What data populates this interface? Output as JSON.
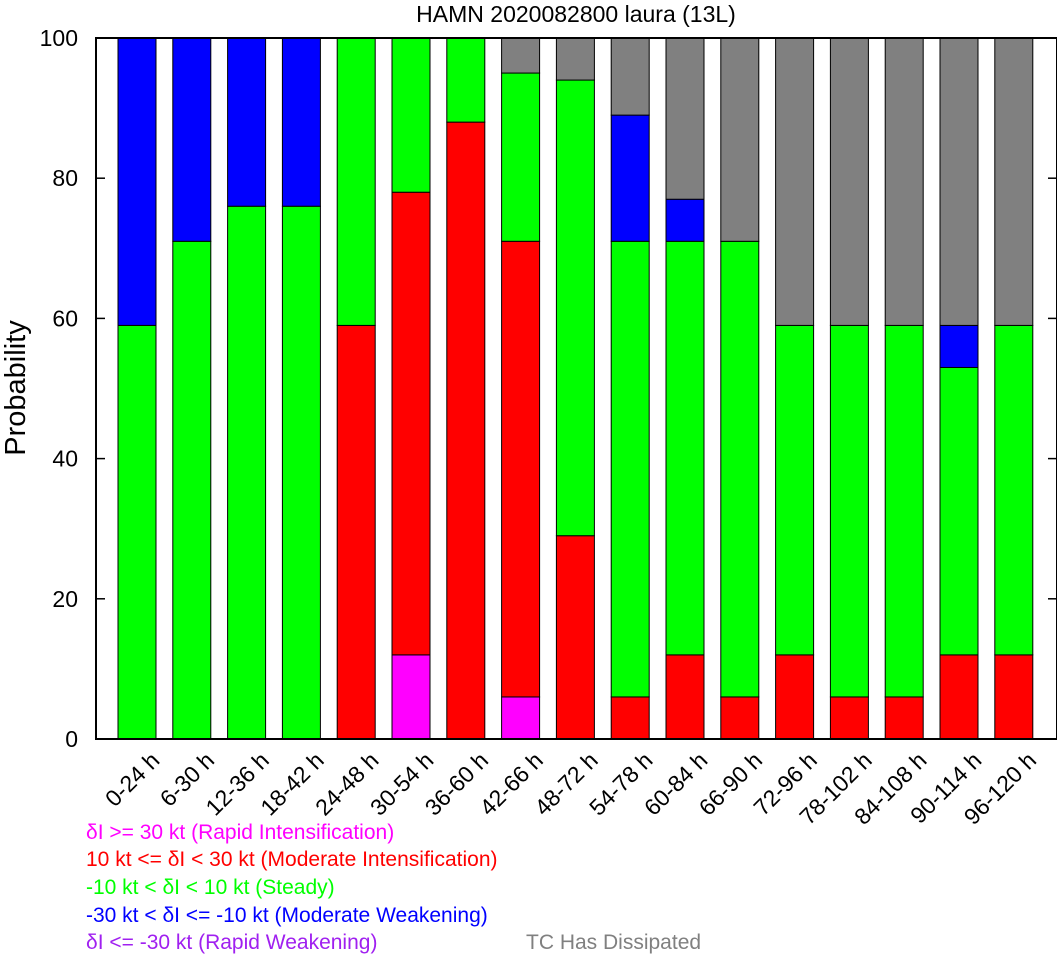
{
  "chart_data": {
    "type": "bar",
    "stacked": true,
    "title": "HAMN 2020082800 laura (13L)",
    "xlabel": "",
    "ylabel": "Probability",
    "ylim": [
      0,
      100
    ],
    "yticks": [
      0,
      20,
      40,
      60,
      80,
      100
    ],
    "grid": false,
    "categories": [
      "0-24 h",
      "6-30 h",
      "12-36 h",
      "18-42 h",
      "24-48 h",
      "30-54 h",
      "36-60 h",
      "42-66 h",
      "48-72 h",
      "54-78 h",
      "60-84 h",
      "66-90 h",
      "72-96 h",
      "78-102 h",
      "84-108 h",
      "90-114 h",
      "96-120 h"
    ],
    "series": [
      {
        "name": "δI >= 30 kt (Rapid Intensification)",
        "color": "#ff00ff",
        "values": [
          0,
          0,
          0,
          0,
          0,
          12,
          0,
          6,
          0,
          0,
          0,
          0,
          0,
          0,
          0,
          0,
          0
        ]
      },
      {
        "name": "10 kt <= δI < 30 kt (Moderate Intensification)",
        "color": "#ff0000",
        "values": [
          0,
          0,
          0,
          0,
          59,
          66,
          88,
          65,
          29,
          6,
          12,
          6,
          12,
          6,
          6,
          12,
          12
        ]
      },
      {
        "name": "-10 kt < δI < 10 kt (Steady)",
        "color": "#00ff00",
        "values": [
          59,
          71,
          76,
          76,
          41,
          22,
          12,
          24,
          65,
          65,
          59,
          65,
          47,
          53,
          53,
          41,
          47
        ]
      },
      {
        "name": "-30 kt < δI <= -10 kt (Moderate Weakening)",
        "color": "#0000ff",
        "values": [
          41,
          29,
          24,
          24,
          0,
          0,
          0,
          0,
          0,
          18,
          6,
          0,
          0,
          0,
          0,
          6,
          0
        ]
      },
      {
        "name": "δI <= -30 kt (Rapid Weakening)",
        "color": "#a020f0",
        "values": [
          0,
          0,
          0,
          0,
          0,
          0,
          0,
          0,
          0,
          0,
          0,
          0,
          0,
          0,
          0,
          0,
          0
        ]
      },
      {
        "name": "TC Has Dissipated",
        "color": "#808080",
        "values": [
          0,
          0,
          0,
          0,
          0,
          0,
          0,
          5,
          6,
          11,
          23,
          29,
          41,
          41,
          41,
          41,
          41
        ]
      }
    ]
  },
  "legend": [
    {
      "text": "δI >= 30 kt (Rapid Intensification)",
      "color": "#ff00ff"
    },
    {
      "text": "10 kt <= δI < 30 kt (Moderate Intensification)",
      "color": "#ff0000"
    },
    {
      "text": "-10 kt < δI < 10 kt (Steady)",
      "color": "#00ff00"
    },
    {
      "text": "-30 kt < δI <= -10 kt (Moderate Weakening)",
      "color": "#0000ff"
    },
    {
      "text": "δI <= -30 kt (Rapid Weakening)",
      "color": "#a020f0"
    },
    {
      "text": "TC Has Dissipated",
      "color": "#808080"
    }
  ]
}
